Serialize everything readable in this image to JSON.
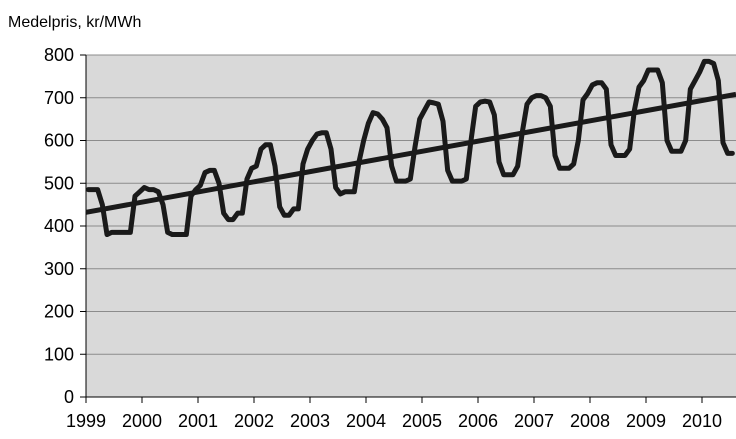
{
  "chart_data": {
    "type": "line",
    "title": "",
    "ylabel": "Medelpris, kr/MWh",
    "xlabel": "",
    "ylim": [
      0,
      800
    ],
    "yticks": [
      0,
      100,
      200,
      300,
      400,
      500,
      600,
      700,
      800
    ],
    "year_labels": [
      "1999",
      "2000",
      "2001",
      "2002",
      "2003",
      "2004",
      "2005",
      "2006",
      "2007",
      "2008",
      "2009",
      "2010"
    ],
    "grid": "horizontal",
    "colors": {
      "plot_bg": "#d9d9d9",
      "line": "#1a1a1a",
      "grid": "#8c8c8c"
    },
    "series": [
      {
        "values": [
          485,
          485,
          485,
          450,
          380,
          385,
          385,
          385,
          385,
          385,
          470,
          480,
          490,
          485,
          485,
          480,
          450,
          385,
          380,
          380,
          380,
          380,
          470,
          485,
          495,
          525,
          530,
          530,
          500,
          430,
          415,
          415,
          430,
          430,
          510,
          535,
          540,
          580,
          590,
          590,
          540,
          445,
          425,
          425,
          440,
          440,
          545,
          580,
          600,
          615,
          618,
          618,
          580,
          490,
          475,
          480,
          480,
          480,
          550,
          600,
          640,
          665,
          662,
          650,
          630,
          540,
          505,
          505,
          505,
          510,
          585,
          650,
          670,
          690,
          688,
          685,
          645,
          530,
          505,
          505,
          505,
          510,
          600,
          680,
          690,
          692,
          690,
          660,
          550,
          520,
          520,
          520,
          540,
          620,
          685,
          700,
          705,
          705,
          700,
          680,
          565,
          535,
          535,
          535,
          545,
          600,
          695,
          710,
          730,
          735,
          735,
          720,
          590,
          565,
          565,
          565,
          580,
          670,
          725,
          740,
          765,
          765,
          765,
          735,
          600,
          575,
          575,
          575,
          600,
          720,
          740,
          760,
          785,
          785,
          780,
          740,
          595,
          570,
          570
        ]
      },
      {
        "type": "trend",
        "values": [
          432,
          708
        ]
      }
    ]
  }
}
